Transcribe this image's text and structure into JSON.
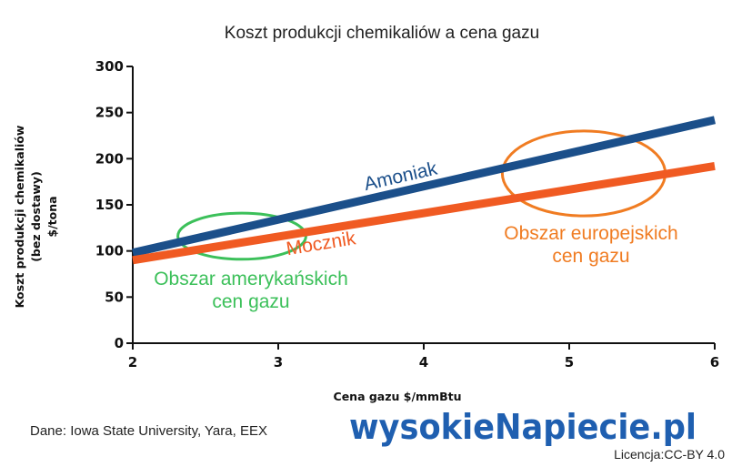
{
  "chart_data": {
    "type": "line",
    "title": "Koszt produkcji chemikaliów a cena gazu",
    "xlabel": "Cena gazu $/mmBtu",
    "ylabel_lines": [
      "Koszt produkcji chemikaliów",
      "(bez dostawy)",
      "$/tona"
    ],
    "xlim": [
      2,
      6
    ],
    "ylim": [
      0,
      300
    ],
    "x_ticks": [
      2,
      3,
      4,
      5,
      6
    ],
    "y_ticks": [
      0,
      50,
      100,
      150,
      200,
      250,
      300
    ],
    "grid": false,
    "series": [
      {
        "name": "Amoniak",
        "x": [
          2,
          6
        ],
        "y": [
          98,
          242
        ],
        "color": "#1b4f8a"
      },
      {
        "name": "Mocznik",
        "x": [
          2,
          6
        ],
        "y": [
          90,
          192
        ],
        "color": "#f05a22"
      }
    ],
    "annotations": [
      {
        "lines": [
          "Obszar amerykańskich",
          "cen gazu"
        ],
        "color": "#3cc05a",
        "ellipse_center": [
          2.75,
          116
        ],
        "ellipse_radius": [
          0.44,
          25
        ]
      },
      {
        "lines": [
          "Obszar europejskich",
          "cen gazu"
        ],
        "color": "#f07c22",
        "ellipse_center": [
          5.1,
          184
        ],
        "ellipse_radius": [
          0.56,
          46
        ]
      }
    ]
  },
  "footer": {
    "source": "Dane: Iowa State University, Yara, EEX",
    "license": "Licencja:CC-BY 4.0",
    "logo_text": "wysokieNapiecie.pl"
  }
}
